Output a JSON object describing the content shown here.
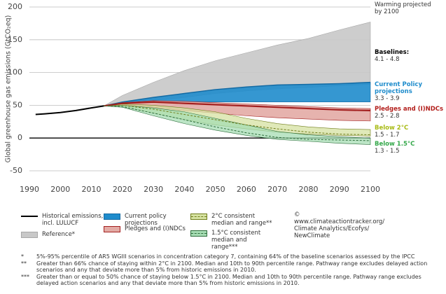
{
  "chart_data": {
    "type": "area",
    "y_label": "Global greenhouse gas emissions (GtCO₂eq)",
    "xlim": [
      1990,
      2100
    ],
    "xticks": [
      1990,
      2000,
      2010,
      2020,
      2030,
      2040,
      2050,
      2060,
      2070,
      2080,
      2090,
      2100
    ],
    "ylim": [
      -50,
      200
    ],
    "yticks": [
      -50,
      0,
      50,
      100,
      150,
      200
    ],
    "grid": true,
    "x": [
      2014,
      2020,
      2030,
      2040,
      2050,
      2060,
      2070,
      2080,
      2090,
      2100
    ],
    "series": [
      {
        "name": "Historical emissions, incl. LULUCF",
        "color": "#000000",
        "x": [
          1992,
          1995,
          2000,
          2005,
          2010,
          2014
        ],
        "values": [
          36,
          37,
          39,
          42,
          46,
          49
        ]
      },
      {
        "name": "Reference*",
        "color": "#c8c8c8",
        "line_color": "#a8a8a8",
        "low": [
          49,
          52,
          57,
          62,
          68,
          72,
          75,
          77,
          80,
          82
        ],
        "high": [
          49,
          65,
          85,
          103,
          118,
          130,
          142,
          152,
          165,
          177
        ]
      },
      {
        "name": "Current policy projections",
        "color": "#1f8ccc",
        "line_color": "#136aa3",
        "low": [
          49,
          52,
          55,
          55,
          55,
          55,
          55,
          55,
          55,
          55
        ],
        "high": [
          49,
          55,
          62,
          68,
          74,
          78,
          81,
          82,
          83,
          85
        ]
      },
      {
        "name": "Pledges and (I)NDCs",
        "color": "#e3aba5",
        "line_color": "#a31f1f",
        "low": [
          49,
          51,
          47,
          42,
          38,
          34,
          31,
          29,
          27,
          26
        ],
        "high": [
          49,
          54,
          57,
          56,
          54,
          52,
          50,
          48,
          46,
          45
        ],
        "values": [
          49,
          53,
          55,
          53,
          51,
          49,
          47,
          45,
          43,
          42
        ]
      },
      {
        "name": "2°C consistent median and range**",
        "color": "#d6e2a2",
        "line_color": "#6f7d1a",
        "low": [
          49,
          48,
          38,
          28,
          20,
          14,
          9,
          6,
          4,
          3
        ],
        "high": [
          49,
          52,
          50,
          46,
          40,
          30,
          22,
          17,
          14,
          13
        ],
        "values": [
          49,
          50,
          44,
          36,
          28,
          20,
          14,
          9,
          6,
          5
        ]
      },
      {
        "name": "1.5°C consistent median and range***",
        "color": "#a6dcb3",
        "line_color": "#2e6e3c",
        "low": [
          49,
          47,
          34,
          22,
          12,
          4,
          -2,
          -5,
          -8,
          -10
        ],
        "high": [
          49,
          50,
          46,
          40,
          30,
          20,
          10,
          5,
          2,
          0
        ],
        "values": [
          49,
          48,
          38,
          28,
          17,
          8,
          1,
          -2,
          -3,
          -4
        ]
      }
    ],
    "annotations_title": "Warming projected by 2100",
    "annotations": [
      {
        "label": "Baselines:",
        "range": "4.1 - 4.8",
        "color": "#000000"
      },
      {
        "label": "Current Policy projections",
        "range": "3.3 - 3.9",
        "color": "#1f8ccc"
      },
      {
        "label": "Pledges and (I)NDCs",
        "range": "2.5 - 2.8",
        "color": "#b3201d"
      },
      {
        "label": "Below 2°C",
        "range": "1.5 - 1.7",
        "color": "#a8bb15"
      },
      {
        "label": "Below 1.5°C",
        "range": "1.3 - 1.5",
        "color": "#34a84a"
      }
    ],
    "credit": "© www.climateactiontracker.org/ Climate Analytics/Ecofys/ NewClimate"
  },
  "footnotes": [
    {
      "marker": "*",
      "text": "5%-95% percentile of AR5 WGIII scenarios in concentration category 7, containing 64% of the baseline scenarios assessed by the IPCC"
    },
    {
      "marker": "**",
      "text": "Greater than 66% chance of staying within 2°C in 2100. Median and 10th to 90th percentile range. Pathway range excludes delayed action scenarios and any that deviate more than 5% from historic emissions in 2010."
    },
    {
      "marker": "***",
      "text": "Greater than or equal to 50% chance of staying below 1.5°C in 2100. Median and 10th to 90th percentile range. Pathway range excludes delayed action scenarios and any that deviate more than 5% from historic emissions in 2010."
    }
  ]
}
